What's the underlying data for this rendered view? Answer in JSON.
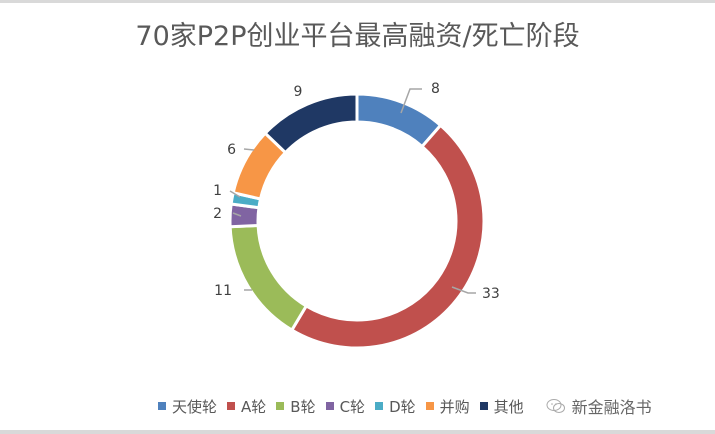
{
  "title": "70家P2P创业平台最高融资/死亡阶段",
  "legend": [
    {
      "label": "天使轮",
      "color": "#4f81bd"
    },
    {
      "label": "A轮",
      "color": "#c0504d"
    },
    {
      "label": "B轮",
      "color": "#9bbb59"
    },
    {
      "label": "C轮",
      "color": "#8064a2"
    },
    {
      "label": "D轮",
      "color": "#4bacc6"
    },
    {
      "label": "并购",
      "color": "#f79646"
    },
    {
      "label": "其他",
      "color": "#1f3864"
    }
  ],
  "watermark": {
    "icon": "wechat-icon",
    "text": "新金融洛书"
  },
  "chart_data": {
    "type": "pie",
    "subtype": "doughnut",
    "title": "70家P2P创业平台最高融资/死亡阶段",
    "categories": [
      "天使轮",
      "A轮",
      "B轮",
      "C轮",
      "D轮",
      "并购",
      "其他"
    ],
    "values": [
      8,
      33,
      11,
      2,
      1,
      6,
      9
    ],
    "colors": [
      "#4f81bd",
      "#c0504d",
      "#9bbb59",
      "#8064a2",
      "#4bacc6",
      "#f79646",
      "#1f3864"
    ],
    "total": 70,
    "start_angle": "top, clockwise",
    "legend_position": "bottom",
    "data_labels": true
  }
}
